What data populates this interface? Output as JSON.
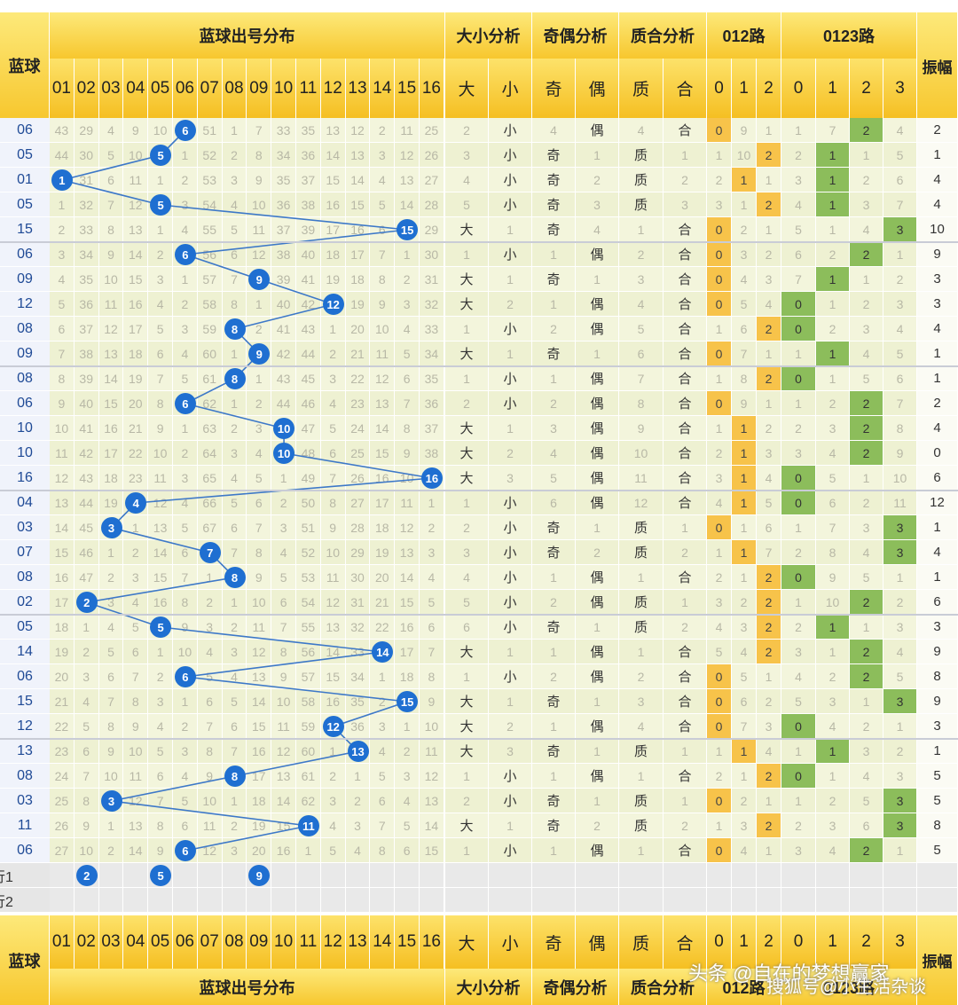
{
  "header": {
    "blue_label": "蓝球",
    "dist_title": "蓝球出号分布",
    "groups": [
      "大小分析",
      "奇偶分析",
      "质合分析",
      "012路",
      "0123路"
    ],
    "amp_label": "振幅",
    "numbers": [
      "01",
      "02",
      "03",
      "04",
      "05",
      "06",
      "07",
      "08",
      "09",
      "10",
      "11",
      "12",
      "13",
      "14",
      "15",
      "16"
    ],
    "sub_labels": [
      "大",
      "小",
      "奇",
      "偶",
      "质",
      "合",
      "0",
      "1",
      "2",
      "0",
      "1",
      "2",
      "3"
    ]
  },
  "rows": [
    {
      "n": "06",
      "miss": [
        43,
        29,
        4,
        9,
        10,
        null,
        51,
        1,
        7,
        33,
        35,
        13,
        12,
        2,
        11,
        25
      ],
      "bs": [
        2,
        "小"
      ],
      "oe": [
        4,
        "偶"
      ],
      "pc": [
        4,
        "合"
      ],
      "r3": [
        0,
        9,
        1
      ],
      "r4": [
        1,
        7,
        2,
        4
      ],
      "amp": 2
    },
    {
      "n": "05",
      "miss": [
        44,
        30,
        5,
        10,
        null,
        1,
        52,
        2,
        8,
        34,
        36,
        14,
        13,
        3,
        12,
        26
      ],
      "bs": [
        3,
        "小"
      ],
      "oe": [
        "奇",
        1
      ],
      "pc": [
        "质",
        1
      ],
      "r3": [
        1,
        10,
        2
      ],
      "r4": [
        2,
        1,
        1,
        5
      ],
      "amp": 1
    },
    {
      "n": "01",
      "miss": [
        null,
        31,
        6,
        11,
        1,
        2,
        53,
        3,
        9,
        35,
        37,
        15,
        14,
        4,
        13,
        27
      ],
      "bs": [
        4,
        "小"
      ],
      "oe": [
        "奇",
        2
      ],
      "pc": [
        "质",
        2
      ],
      "r3": [
        2,
        1,
        1
      ],
      "r4": [
        3,
        1,
        2,
        6
      ],
      "amp": 4
    },
    {
      "n": "05",
      "miss": [
        1,
        32,
        7,
        12,
        null,
        3,
        54,
        4,
        10,
        36,
        38,
        16,
        15,
        5,
        14,
        28
      ],
      "bs": [
        5,
        "小"
      ],
      "oe": [
        "奇",
        3
      ],
      "pc": [
        "质",
        3
      ],
      "r3": [
        3,
        1,
        2
      ],
      "r4": [
        4,
        1,
        3,
        7
      ],
      "amp": 4
    },
    {
      "n": "15",
      "miss": [
        2,
        33,
        8,
        13,
        1,
        4,
        55,
        5,
        11,
        37,
        39,
        17,
        16,
        6,
        null,
        29
      ],
      "bs": [
        "大",
        1
      ],
      "oe": [
        "奇",
        4
      ],
      "pc": [
        1,
        "合"
      ],
      "r3": [
        0,
        2,
        1
      ],
      "r4": [
        5,
        1,
        4,
        3
      ],
      "amp": 10
    },
    {
      "n": "06",
      "miss": [
        3,
        34,
        9,
        14,
        2,
        null,
        56,
        6,
        12,
        38,
        40,
        18,
        17,
        7,
        1,
        30
      ],
      "bs": [
        1,
        "小"
      ],
      "oe": [
        1,
        "偶"
      ],
      "pc": [
        2,
        "合"
      ],
      "r3": [
        0,
        3,
        2
      ],
      "r4": [
        6,
        2,
        2,
        1
      ],
      "amp": 9
    },
    {
      "n": "09",
      "miss": [
        4,
        35,
        10,
        15,
        3,
        1,
        57,
        7,
        null,
        39,
        41,
        19,
        18,
        8,
        2,
        31
      ],
      "bs": [
        "大",
        1
      ],
      "oe": [
        "奇",
        1
      ],
      "pc": [
        3,
        "合"
      ],
      "r3": [
        0,
        4,
        3
      ],
      "r4": [
        7,
        1,
        1,
        2
      ],
      "amp": 3
    },
    {
      "n": "12",
      "miss": [
        5,
        36,
        11,
        16,
        4,
        2,
        58,
        8,
        1,
        40,
        42,
        null,
        19,
        9,
        3,
        32
      ],
      "bs": [
        "大",
        2
      ],
      "oe": [
        1,
        "偶"
      ],
      "pc": [
        4,
        "合"
      ],
      "r3": [
        0,
        5,
        4
      ],
      "r4": [
        0,
        1,
        2,
        3
      ],
      "amp": 3
    },
    {
      "n": "08",
      "miss": [
        6,
        37,
        12,
        17,
        5,
        3,
        59,
        null,
        2,
        41,
        43,
        1,
        20,
        10,
        4,
        33
      ],
      "bs": [
        1,
        "小"
      ],
      "oe": [
        2,
        "偶"
      ],
      "pc": [
        5,
        "合"
      ],
      "r3": [
        1,
        6,
        2
      ],
      "r4": [
        0,
        2,
        3,
        4
      ],
      "amp": 4
    },
    {
      "n": "09",
      "miss": [
        7,
        38,
        13,
        18,
        6,
        4,
        60,
        1,
        null,
        42,
        44,
        2,
        21,
        11,
        5,
        34
      ],
      "bs": [
        "大",
        1
      ],
      "oe": [
        "奇",
        1
      ],
      "pc": [
        6,
        "合"
      ],
      "r3": [
        0,
        7,
        1
      ],
      "r4": [
        1,
        1,
        4,
        5
      ],
      "amp": 1
    },
    {
      "n": "08",
      "miss": [
        8,
        39,
        14,
        19,
        7,
        5,
        61,
        null,
        1,
        43,
        45,
        3,
        22,
        12,
        6,
        35
      ],
      "bs": [
        1,
        "小"
      ],
      "oe": [
        1,
        "偶"
      ],
      "pc": [
        7,
        "合"
      ],
      "r3": [
        1,
        8,
        2
      ],
      "r4": [
        0,
        1,
        5,
        6
      ],
      "amp": 1
    },
    {
      "n": "06",
      "miss": [
        9,
        40,
        15,
        20,
        8,
        null,
        62,
        1,
        2,
        44,
        46,
        4,
        23,
        13,
        7,
        36
      ],
      "bs": [
        2,
        "小"
      ],
      "oe": [
        2,
        "偶"
      ],
      "pc": [
        8,
        "合"
      ],
      "r3": [
        0,
        9,
        1
      ],
      "r4": [
        1,
        2,
        2,
        7
      ],
      "amp": 2
    },
    {
      "n": "10",
      "miss": [
        10,
        41,
        16,
        21,
        9,
        1,
        63,
        2,
        3,
        null,
        47,
        5,
        24,
        14,
        8,
        37
      ],
      "bs": [
        "大",
        1
      ],
      "oe": [
        3,
        "偶"
      ],
      "pc": [
        9,
        "合"
      ],
      "r3": [
        1,
        1,
        2
      ],
      "r4": [
        2,
        3,
        2,
        8
      ],
      "amp": 4
    },
    {
      "n": "10",
      "miss": [
        11,
        42,
        17,
        22,
        10,
        2,
        64,
        3,
        4,
        null,
        48,
        6,
        25,
        15,
        9,
        38
      ],
      "bs": [
        "大",
        2
      ],
      "oe": [
        4,
        "偶"
      ],
      "pc": [
        10,
        "合"
      ],
      "r3": [
        2,
        1,
        3
      ],
      "r4": [
        3,
        4,
        2,
        9
      ],
      "amp": 0
    },
    {
      "n": "16",
      "miss": [
        12,
        43,
        18,
        23,
        11,
        3,
        65,
        4,
        5,
        1,
        49,
        7,
        26,
        16,
        10,
        null
      ],
      "bs": [
        "大",
        3
      ],
      "oe": [
        5,
        "偶"
      ],
      "pc": [
        11,
        "合"
      ],
      "r3": [
        3,
        1,
        4
      ],
      "r4": [
        0,
        5,
        1,
        10
      ],
      "amp": 6
    },
    {
      "n": "04",
      "miss": [
        13,
        44,
        19,
        null,
        12,
        4,
        66,
        5,
        6,
        2,
        50,
        8,
        27,
        17,
        11,
        1
      ],
      "bs": [
        1,
        "小"
      ],
      "oe": [
        6,
        "偶"
      ],
      "pc": [
        12,
        "合"
      ],
      "r3": [
        4,
        1,
        5
      ],
      "r4": [
        0,
        6,
        2,
        11
      ],
      "amp": 12
    },
    {
      "n": "03",
      "miss": [
        14,
        45,
        null,
        1,
        13,
        5,
        67,
        6,
        7,
        3,
        51,
        9,
        28,
        18,
        12,
        2
      ],
      "bs": [
        2,
        "小"
      ],
      "oe": [
        "奇",
        1
      ],
      "pc": [
        "质",
        1
      ],
      "r3": [
        0,
        1,
        6
      ],
      "r4": [
        1,
        7,
        3,
        3
      ],
      "amp": 1
    },
    {
      "n": "07",
      "miss": [
        15,
        46,
        1,
        2,
        14,
        6,
        null,
        7,
        8,
        4,
        52,
        10,
        29,
        19,
        13,
        3
      ],
      "bs": [
        3,
        "小"
      ],
      "oe": [
        "奇",
        2
      ],
      "pc": [
        "质",
        2
      ],
      "r3": [
        1,
        1,
        7
      ],
      "r4": [
        2,
        8,
        4,
        3
      ],
      "amp": 4
    },
    {
      "n": "08",
      "miss": [
        16,
        47,
        2,
        3,
        15,
        7,
        1,
        null,
        9,
        5,
        53,
        11,
        30,
        20,
        14,
        4
      ],
      "bs": [
        4,
        "小"
      ],
      "oe": [
        1,
        "偶"
      ],
      "pc": [
        1,
        "合"
      ],
      "r3": [
        2,
        1,
        2
      ],
      "r4": [
        0,
        9,
        5,
        1
      ],
      "amp": 1
    },
    {
      "n": "02",
      "miss": [
        17,
        null,
        3,
        4,
        16,
        8,
        2,
        1,
        10,
        6,
        54,
        12,
        31,
        21,
        15,
        5
      ],
      "bs": [
        5,
        "小"
      ],
      "oe": [
        2,
        "偶"
      ],
      "pc": [
        "质",
        1
      ],
      "r3": [
        3,
        2,
        2
      ],
      "r4": [
        1,
        10,
        2,
        2
      ],
      "amp": 6
    },
    {
      "n": "05",
      "miss": [
        18,
        1,
        4,
        5,
        null,
        9,
        3,
        2,
        11,
        7,
        55,
        13,
        32,
        22,
        16,
        6
      ],
      "bs": [
        6,
        "小"
      ],
      "oe": [
        "奇",
        1
      ],
      "pc": [
        "质",
        2
      ],
      "r3": [
        4,
        3,
        2
      ],
      "r4": [
        2,
        1,
        1,
        3
      ],
      "amp": 3
    },
    {
      "n": "14",
      "miss": [
        19,
        2,
        5,
        6,
        1,
        10,
        4,
        3,
        12,
        8,
        56,
        14,
        33,
        null,
        17,
        7
      ],
      "bs": [
        "大",
        1
      ],
      "oe": [
        1,
        "偶"
      ],
      "pc": [
        1,
        "合"
      ],
      "r3": [
        5,
        4,
        2
      ],
      "r4": [
        3,
        1,
        2,
        4
      ],
      "amp": 9
    },
    {
      "n": "06",
      "miss": [
        20,
        3,
        6,
        7,
        2,
        null,
        5,
        4,
        13,
        9,
        57,
        15,
        34,
        1,
        18,
        8
      ],
      "bs": [
        1,
        "小"
      ],
      "oe": [
        2,
        "偶"
      ],
      "pc": [
        2,
        "合"
      ],
      "r3": [
        0,
        5,
        1
      ],
      "r4": [
        4,
        2,
        2,
        5
      ],
      "amp": 8
    },
    {
      "n": "15",
      "miss": [
        21,
        4,
        7,
        8,
        3,
        1,
        6,
        5,
        14,
        10,
        58,
        16,
        35,
        2,
        null,
        9
      ],
      "bs": [
        "大",
        1
      ],
      "oe": [
        "奇",
        1
      ],
      "pc": [
        3,
        "合"
      ],
      "r3": [
        0,
        6,
        2
      ],
      "r4": [
        5,
        3,
        1,
        3
      ],
      "amp": 9
    },
    {
      "n": "12",
      "miss": [
        22,
        5,
        8,
        9,
        4,
        2,
        7,
        6,
        15,
        11,
        59,
        null,
        36,
        3,
        1,
        10
      ],
      "bs": [
        "大",
        2
      ],
      "oe": [
        1,
        "偶"
      ],
      "pc": [
        4,
        "合"
      ],
      "r3": [
        0,
        7,
        3
      ],
      "r4": [
        0,
        4,
        2,
        1
      ],
      "amp": 3
    },
    {
      "n": "13",
      "miss": [
        23,
        6,
        9,
        10,
        5,
        3,
        8,
        7,
        16,
        12,
        60,
        1,
        null,
        4,
        2,
        11
      ],
      "bs": [
        "大",
        3
      ],
      "oe": [
        "奇",
        1
      ],
      "pc": [
        "质",
        1
      ],
      "r3": [
        1,
        1,
        4
      ],
      "r4": [
        1,
        1,
        3,
        2
      ],
      "amp": 1
    },
    {
      "n": "08",
      "miss": [
        24,
        7,
        10,
        11,
        6,
        4,
        9,
        null,
        17,
        13,
        61,
        2,
        1,
        5,
        3,
        12
      ],
      "bs": [
        1,
        "小"
      ],
      "oe": [
        1,
        "偶"
      ],
      "pc": [
        1,
        "合"
      ],
      "r3": [
        2,
        1,
        2
      ],
      "r4": [
        0,
        1,
        4,
        3
      ],
      "amp": 5
    },
    {
      "n": "03",
      "miss": [
        25,
        8,
        null,
        12,
        7,
        5,
        10,
        1,
        18,
        14,
        62,
        3,
        2,
        6,
        4,
        13
      ],
      "bs": [
        2,
        "小"
      ],
      "oe": [
        "奇",
        1
      ],
      "pc": [
        "质",
        1
      ],
      "r3": [
        0,
        2,
        1
      ],
      "r4": [
        1,
        2,
        5,
        3
      ],
      "amp": 5
    },
    {
      "n": "11",
      "miss": [
        26,
        9,
        1,
        13,
        8,
        6,
        11,
        2,
        19,
        15,
        null,
        4,
        3,
        7,
        5,
        14
      ],
      "bs": [
        "大",
        1
      ],
      "oe": [
        "奇",
        2
      ],
      "pc": [
        "质",
        2
      ],
      "r3": [
        1,
        3,
        2
      ],
      "r4": [
        2,
        3,
        6,
        3
      ],
      "amp": 8
    },
    {
      "n": "06",
      "miss": [
        27,
        10,
        2,
        14,
        9,
        null,
        12,
        3,
        20,
        16,
        1,
        5,
        4,
        8,
        6,
        15
      ],
      "bs": [
        1,
        "小"
      ],
      "oe": [
        1,
        "偶"
      ],
      "pc": [
        1,
        "合"
      ],
      "r3": [
        0,
        4,
        1
      ],
      "r4": [
        3,
        4,
        2,
        1
      ],
      "amp": 5
    }
  ],
  "predict": {
    "row1_label": "行1",
    "row2_label": "行2",
    "row1_balls": [
      "2",
      "5",
      "9"
    ]
  },
  "watermark": {
    "line1": "头条 @自在的梦想赢家",
    "line2": "搜狐号@小生活杂谈"
  },
  "colors": {
    "ball": "#1f6fd1",
    "line": "#3d78c8",
    "orange": "#f7c34a",
    "green": "#8cbd5b",
    "cell_a": "#f3f5dc",
    "cell_b": "#eef1d2"
  }
}
